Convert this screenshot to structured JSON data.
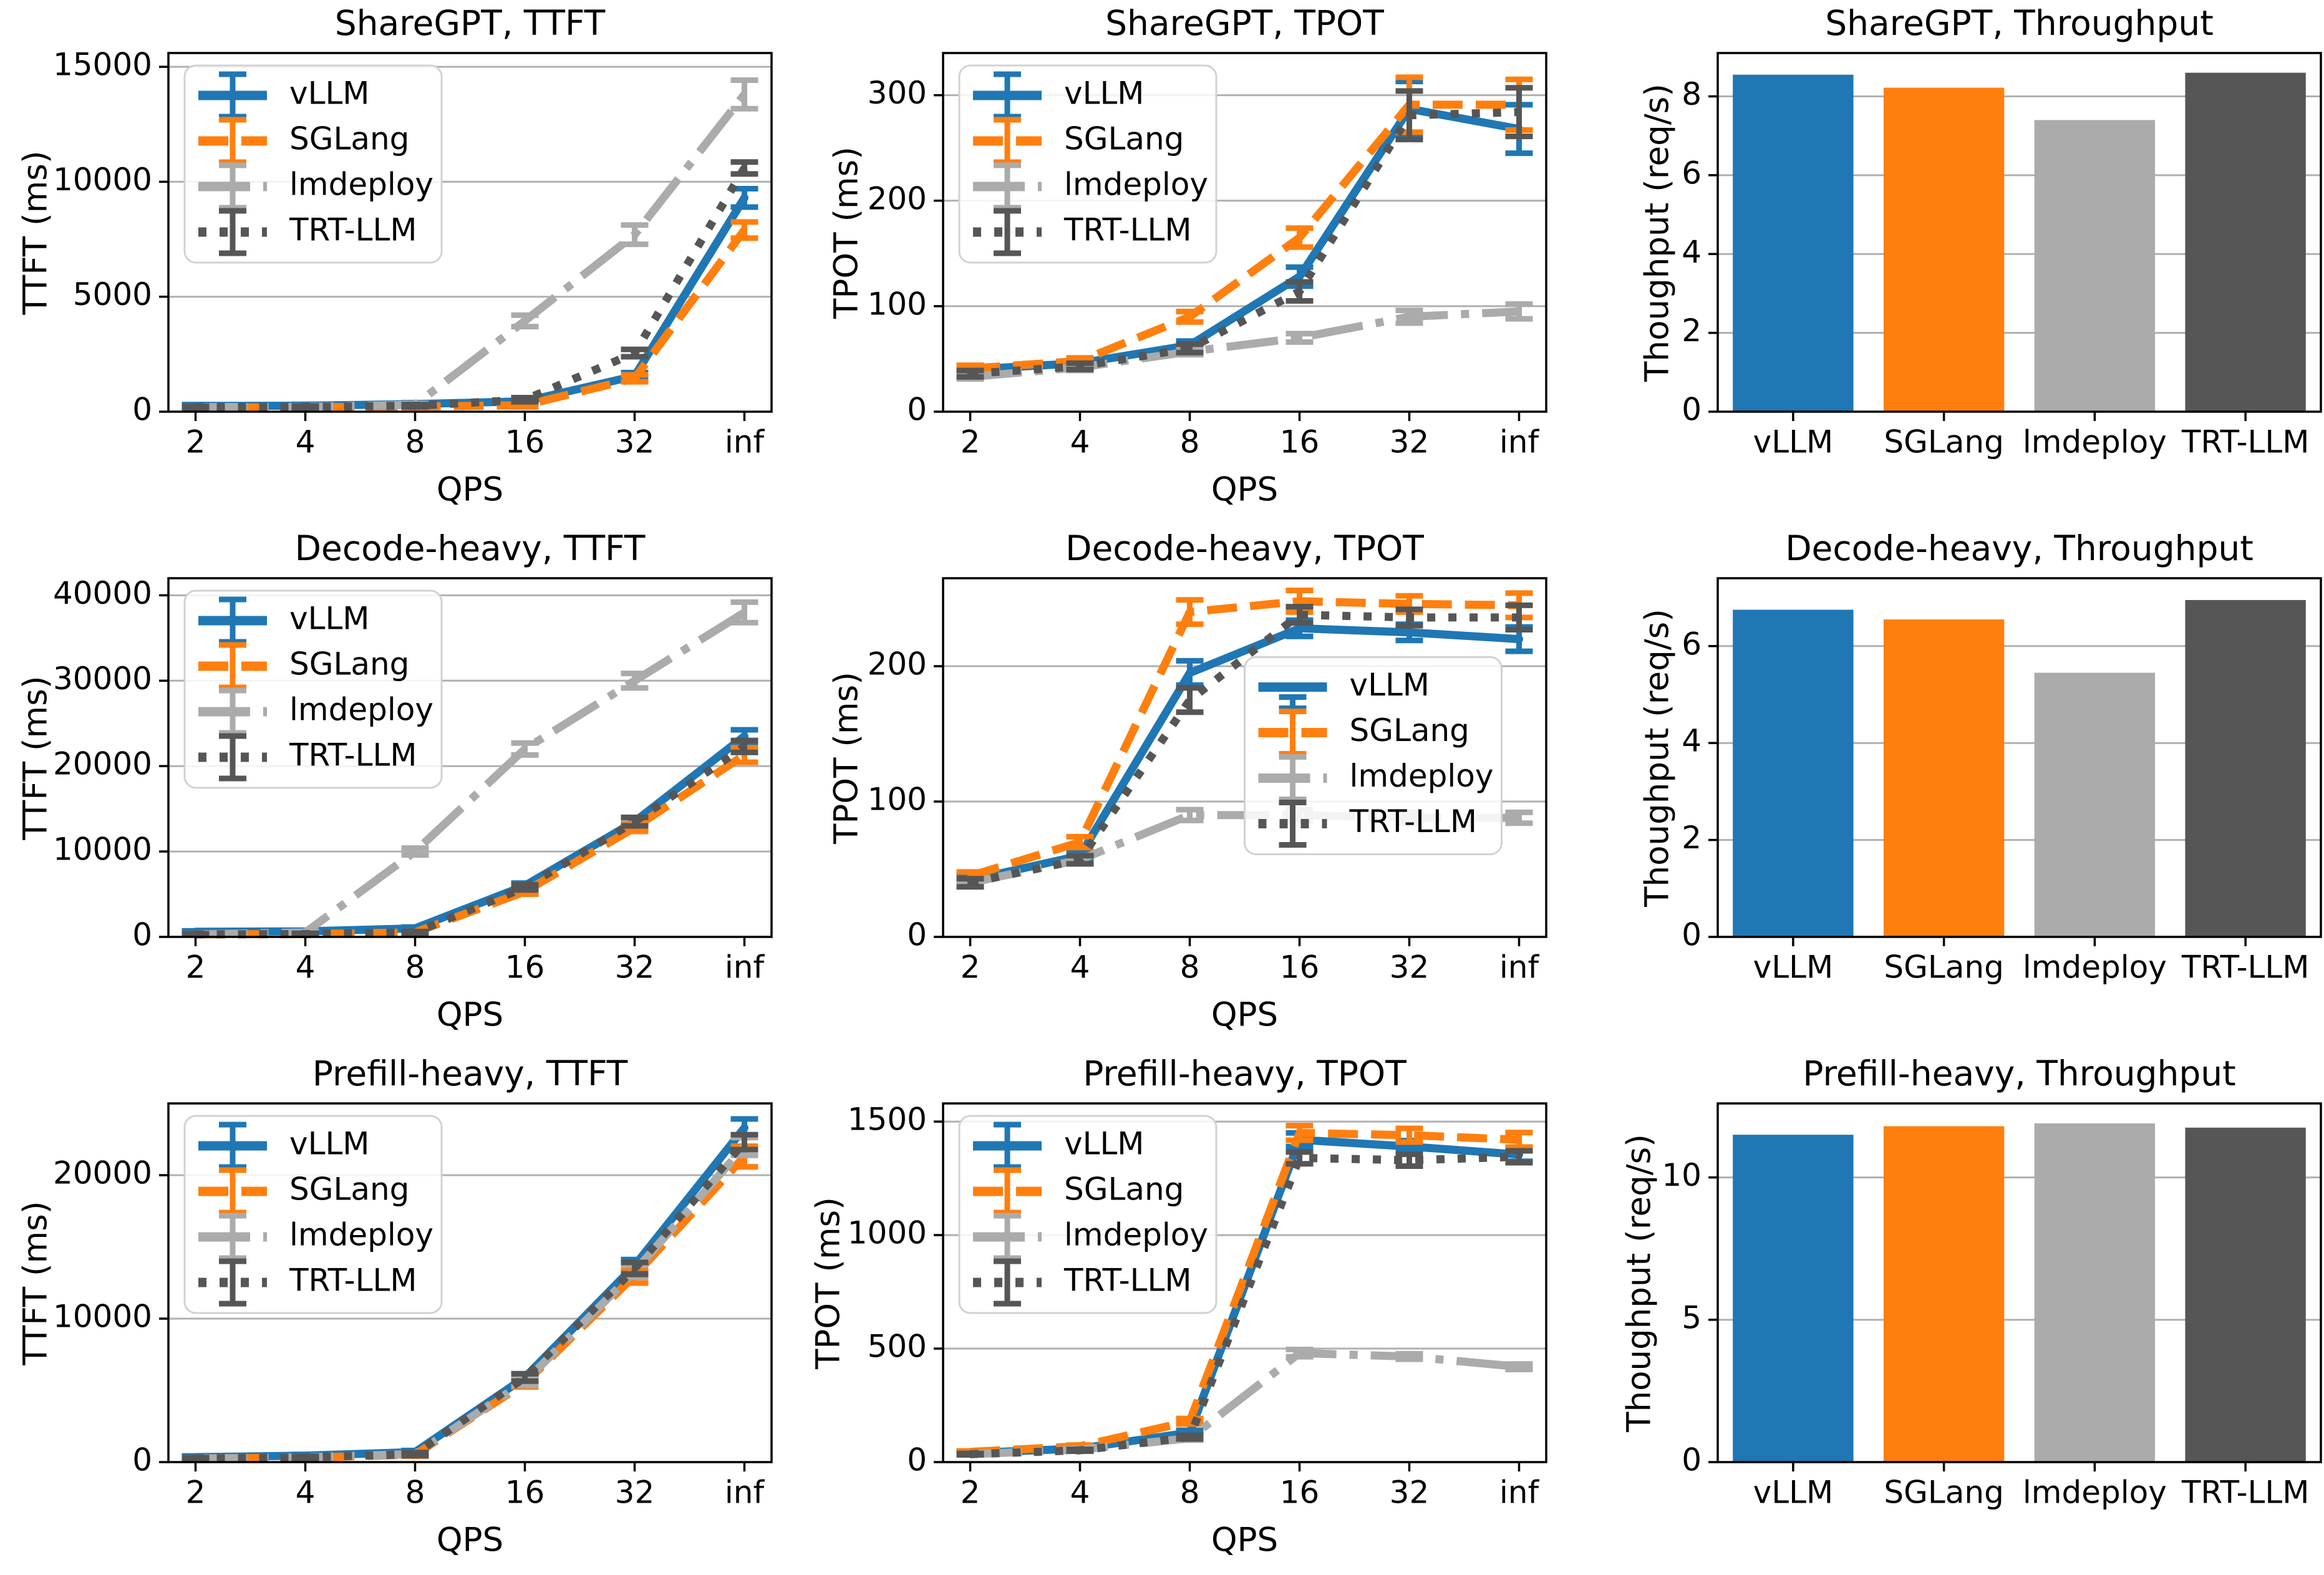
{
  "page": {
    "background": "#ffffff",
    "description": "3x3 grid of LLM serving benchmark charts"
  },
  "frameworks": [
    "vLLM",
    "SGLang",
    "lmdeploy",
    "TRT-LLM"
  ],
  "colors": {
    "vLLM": "#1f77b4",
    "SGLang": "#ff7f0e",
    "lmdeploy": "#ababab",
    "TRT-LLM": "#565656",
    "grid": "#b0b0b0",
    "spine": "#000000",
    "legend_border": "#d2d2d2",
    "text": "#000000"
  },
  "chart_data": [
    {
      "type": "line",
      "title": "ShareGPT, TTFT",
      "ylabel": "TTFT (ms)",
      "xlabel": "QPS",
      "categories": [
        "2",
        "4",
        "8",
        "16",
        "32",
        "inf"
      ],
      "yticks": [
        0,
        5000,
        10000,
        15000
      ],
      "ylim": [
        0,
        15600
      ],
      "grid": true,
      "legend": "upper-left",
      "series": [
        {
          "name": "vLLM",
          "color": "#1f77b4",
          "dash": "solid",
          "values": [
            250,
            260,
            330,
            450,
            1550,
            9300
          ],
          "err": [
            60,
            60,
            60,
            90,
            150,
            400
          ]
        },
        {
          "name": "SGLang",
          "color": "#ff7f0e",
          "dash": "dashed",
          "values": [
            180,
            190,
            220,
            280,
            1450,
            7900
          ],
          "err": [
            40,
            40,
            50,
            70,
            150,
            350
          ]
        },
        {
          "name": "lmdeploy",
          "color": "#ababab",
          "dash": "dashdot",
          "values": [
            200,
            210,
            300,
            3950,
            7700,
            13800
          ],
          "err": [
            40,
            40,
            60,
            250,
            420,
            620
          ]
        },
        {
          "name": "TRT-LLM",
          "color": "#565656",
          "dash": "dotted",
          "values": [
            200,
            210,
            260,
            520,
            2550,
            10600
          ],
          "err": [
            40,
            40,
            50,
            90,
            160,
            260
          ]
        }
      ]
    },
    {
      "type": "line",
      "title": "ShareGPT, TPOT",
      "ylabel": "TPOT (ms)",
      "xlabel": "QPS",
      "categories": [
        "2",
        "4",
        "8",
        "16",
        "32",
        "inf"
      ],
      "yticks": [
        0,
        100,
        200,
        300
      ],
      "ylim": [
        0,
        340
      ],
      "grid": true,
      "legend": "upper-left",
      "series": [
        {
          "name": "vLLM",
          "color": "#1f77b4",
          "dash": "solid",
          "values": [
            40,
            46,
            63,
            128,
            287,
            268
          ],
          "err": [
            3,
            3,
            4,
            9,
            26,
            23
          ]
        },
        {
          "name": "SGLang",
          "color": "#ff7f0e",
          "dash": "dashed",
          "values": [
            41,
            48,
            90,
            165,
            291,
            291
          ],
          "err": [
            3,
            3,
            5,
            9,
            26,
            24
          ]
        },
        {
          "name": "lmdeploy",
          "color": "#ababab",
          "dash": "dashdot",
          "values": [
            33,
            42,
            57,
            70,
            90,
            95
          ],
          "err": [
            2,
            3,
            3,
            4,
            6,
            7
          ]
        },
        {
          "name": "TRT-LLM",
          "color": "#565656",
          "dash": "dotted",
          "values": [
            36,
            43,
            60,
            114,
            281,
            284
          ],
          "err": [
            3,
            3,
            4,
            9,
            23,
            23
          ]
        }
      ]
    },
    {
      "type": "bar",
      "title": "ShareGPT, Throughput",
      "ylabel": "Thoughput (req/s)",
      "xlabel": "",
      "categories": [
        "vLLM",
        "SGLang",
        "lmdeploy",
        "TRT-LLM"
      ],
      "values": [
        8.55,
        8.22,
        7.4,
        8.6
      ],
      "bar_colors": [
        "#1f77b4",
        "#ff7f0e",
        "#ababab",
        "#565656"
      ],
      "yticks": [
        0,
        2,
        4,
        6,
        8
      ],
      "ylim": [
        0,
        9.1
      ],
      "grid": true,
      "legend": "none"
    },
    {
      "type": "line",
      "title": "Decode-heavy, TTFT",
      "ylabel": "TTFT (ms)",
      "xlabel": "QPS",
      "categories": [
        "2",
        "4",
        "8",
        "16",
        "32",
        "inf"
      ],
      "yticks": [
        0,
        10000,
        20000,
        30000,
        40000
      ],
      "ylim": [
        0,
        42000
      ],
      "grid": true,
      "legend": "upper-left",
      "series": [
        {
          "name": "vLLM",
          "color": "#1f77b4",
          "dash": "solid",
          "values": [
            600,
            650,
            1000,
            6000,
            13500,
            23500
          ],
          "err": [
            100,
            100,
            150,
            300,
            450,
            750
          ]
        },
        {
          "name": "SGLang",
          "color": "#ff7f0e",
          "dash": "dashed",
          "values": [
            300,
            330,
            520,
            5300,
            12800,
            21300
          ],
          "err": [
            80,
            90,
            110,
            300,
            450,
            850
          ]
        },
        {
          "name": "lmdeploy",
          "color": "#ababab",
          "dash": "dashdot",
          "values": [
            300,
            520,
            10000,
            22000,
            30000,
            38000
          ],
          "err": [
            80,
            110,
            400,
            700,
            850,
            1200
          ]
        },
        {
          "name": "TRT-LLM",
          "color": "#565656",
          "dash": "dotted",
          "values": [
            300,
            330,
            520,
            5800,
            13500,
            22300
          ],
          "err": [
            80,
            90,
            110,
            300,
            500,
            700
          ]
        }
      ]
    },
    {
      "type": "line",
      "title": "Decode-heavy, TPOT",
      "ylabel": "TPOT (ms)",
      "xlabel": "QPS",
      "categories": [
        "2",
        "4",
        "8",
        "16",
        "32",
        "inf"
      ],
      "yticks": [
        0,
        100,
        200
      ],
      "ylim": [
        0,
        265
      ],
      "grid": true,
      "legend": "center-right",
      "series": [
        {
          "name": "vLLM",
          "color": "#1f77b4",
          "dash": "solid",
          "values": [
            42,
            60,
            195,
            228,
            225,
            220
          ],
          "err": [
            3,
            4,
            9,
            6,
            6,
            9
          ]
        },
        {
          "name": "SGLang",
          "color": "#ff7f0e",
          "dash": "dashed",
          "values": [
            45,
            70,
            240,
            248,
            246,
            245
          ],
          "err": [
            3,
            4,
            9,
            8,
            6,
            9
          ]
        },
        {
          "name": "lmdeploy",
          "color": "#ababab",
          "dash": "dashdot",
          "values": [
            40,
            57,
            90,
            90,
            88,
            88
          ],
          "err": [
            2,
            3,
            4,
            4,
            4,
            4
          ]
        },
        {
          "name": "TRT-LLM",
          "color": "#565656",
          "dash": "dotted",
          "values": [
            40,
            57,
            175,
            238,
            236,
            236
          ],
          "err": [
            3,
            3,
            9,
            6,
            6,
            9
          ]
        }
      ]
    },
    {
      "type": "bar",
      "title": "Decode-heavy, Throughput",
      "ylabel": "Thoughput (req/s)",
      "xlabel": "",
      "categories": [
        "vLLM",
        "SGLang",
        "lmdeploy",
        "TRT-LLM"
      ],
      "values": [
        6.75,
        6.55,
        5.45,
        6.95
      ],
      "bar_colors": [
        "#1f77b4",
        "#ff7f0e",
        "#ababab",
        "#565656"
      ],
      "yticks": [
        0,
        2,
        4,
        6
      ],
      "ylim": [
        0,
        7.4
      ],
      "grid": true,
      "legend": "none"
    },
    {
      "type": "line",
      "title": "Prefill-heavy, TTFT",
      "ylabel": "TTFT (ms)",
      "xlabel": "QPS",
      "categories": [
        "2",
        "4",
        "8",
        "16",
        "32",
        "inf"
      ],
      "yticks": [
        0,
        10000,
        20000
      ],
      "ylim": [
        0,
        25000
      ],
      "grid": true,
      "legend": "upper-left",
      "series": [
        {
          "name": "vLLM",
          "color": "#1f77b4",
          "dash": "solid",
          "values": [
            350,
            450,
            700,
            5900,
            13700,
            23300
          ],
          "err": [
            80,
            80,
            110,
            260,
            420,
            620
          ]
        },
        {
          "name": "SGLang",
          "color": "#ff7f0e",
          "dash": "dashed",
          "values": [
            250,
            310,
            520,
            5500,
            13000,
            21300
          ],
          "err": [
            60,
            80,
            110,
            260,
            520,
            720
          ]
        },
        {
          "name": "lmdeploy",
          "color": "#ababab",
          "dash": "dashdot",
          "values": [
            250,
            330,
            560,
            5600,
            13300,
            22000
          ],
          "err": [
            60,
            80,
            110,
            260,
            420,
            620
          ]
        },
        {
          "name": "TRT-LLM",
          "color": "#565656",
          "dash": "dotted",
          "values": [
            250,
            330,
            560,
            5900,
            13500,
            22300
          ],
          "err": [
            60,
            80,
            110,
            260,
            420,
            520
          ]
        }
      ]
    },
    {
      "type": "line",
      "title": "Prefill-heavy, TPOT",
      "ylabel": "TPOT (ms)",
      "xlabel": "QPS",
      "categories": [
        "2",
        "4",
        "8",
        "16",
        "32",
        "inf"
      ],
      "yticks": [
        0,
        500,
        1000,
        1500
      ],
      "ylim": [
        0,
        1580
      ],
      "grid": true,
      "legend": "upper-left",
      "series": [
        {
          "name": "vLLM",
          "color": "#1f77b4",
          "dash": "solid",
          "values": [
            40,
            60,
            130,
            1420,
            1390,
            1355
          ],
          "err": [
            4,
            5,
            10,
            30,
            26,
            30
          ]
        },
        {
          "name": "SGLang",
          "color": "#ff7f0e",
          "dash": "dashed",
          "values": [
            45,
            70,
            180,
            1450,
            1440,
            1420
          ],
          "err": [
            4,
            5,
            12,
            32,
            30,
            32
          ]
        },
        {
          "name": "lmdeploy",
          "color": "#ababab",
          "dash": "dashdot",
          "values": [
            35,
            55,
            105,
            480,
            465,
            420
          ],
          "err": [
            3,
            4,
            8,
            16,
            12,
            12
          ]
        },
        {
          "name": "TRT-LLM",
          "color": "#565656",
          "dash": "dotted",
          "values": [
            35,
            52,
            110,
            1340,
            1330,
            1345
          ],
          "err": [
            3,
            4,
            8,
            26,
            26,
            26
          ]
        }
      ]
    },
    {
      "type": "bar",
      "title": "Prefill-heavy, Throughput",
      "ylabel": "Thoughput (req/s)",
      "xlabel": "",
      "categories": [
        "vLLM",
        "SGLang",
        "lmdeploy",
        "TRT-LLM"
      ],
      "values": [
        11.5,
        11.8,
        11.9,
        11.75
      ],
      "bar_colors": [
        "#1f77b4",
        "#ff7f0e",
        "#ababab",
        "#565656"
      ],
      "yticks": [
        0,
        5,
        10
      ],
      "ylim": [
        0,
        12.6
      ],
      "grid": true,
      "legend": "none"
    }
  ]
}
